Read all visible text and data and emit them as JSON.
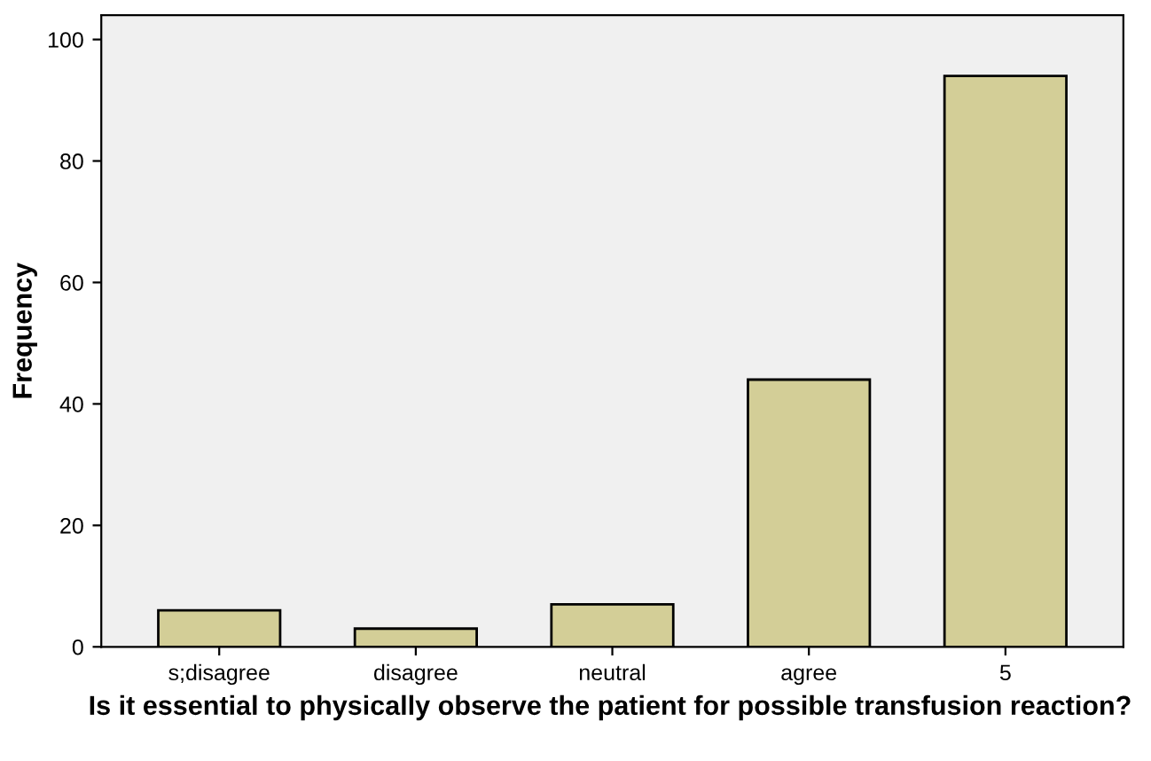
{
  "chart_data": {
    "type": "bar",
    "xlabel": "Is it essential to physically observe the patient for possible transfusion reaction?",
    "ylabel": "Frequency",
    "categories": [
      "s;disagree",
      "disagree",
      "neutral",
      "agree",
      "5"
    ],
    "values": [
      6,
      3,
      7,
      44,
      94
    ],
    "color": "#d3ce97",
    "ylim": [
      0,
      104
    ],
    "yticks": [
      0,
      20,
      40,
      60,
      80,
      100
    ],
    "grid": false,
    "legend": false
  }
}
